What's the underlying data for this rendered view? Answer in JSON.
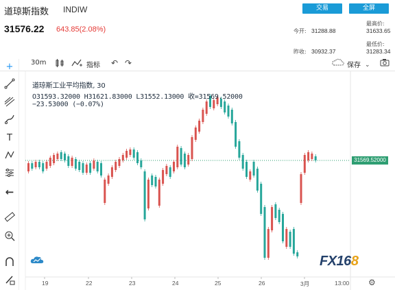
{
  "header": {
    "title": "道琼斯指数",
    "code": "INDIW",
    "trade_label": "交易",
    "fullscreen_label": "全屏",
    "price": "31576.22",
    "change": "643.85(2.08%)"
  },
  "stats": {
    "open_label": "今开:",
    "open": "31288.88",
    "prev_label": "昨收:",
    "prev": "30932.37",
    "high_label": "最高价:",
    "high": "31633.65",
    "low_label": "最低价:",
    "low": "31283.34"
  },
  "toolbar": {
    "interval": "30m",
    "indicator_label": "指标",
    "save_label": "保存"
  },
  "legend": {
    "title": "道琼斯工业平均指数, 30",
    "ohlc": "O31593.32000  H31621.83000  L31552.13000  收=31569.52000",
    "delta": "−23.53000 (−0.07%)"
  },
  "last_price_tag": "31569.52000",
  "x_labels": [
    "19",
    "22",
    "23",
    "24",
    "25",
    "26",
    "3月",
    "13:00"
  ],
  "logo": {
    "prefix": "FX16",
    "suffix": "8"
  },
  "chart_data": {
    "type": "candlestick",
    "x_ticks": [
      "19",
      "22",
      "23",
      "24",
      "25",
      "26",
      "3月",
      "13:00"
    ],
    "last_value": 31569.52,
    "up_color": "#26a69a",
    "down_color": "#d9534f",
    "candles": [
      [
        0,
        238,
        250,
        -1
      ],
      [
        1,
        238,
        246,
        1
      ],
      [
        2,
        236,
        244,
        -1
      ],
      [
        3,
        236,
        244,
        1
      ],
      [
        4,
        238,
        250,
        1
      ],
      [
        5,
        236,
        246,
        -1
      ],
      [
        6,
        230,
        242,
        -1
      ],
      [
        7,
        226,
        238,
        -1
      ],
      [
        8,
        224,
        232,
        -1
      ],
      [
        9,
        222,
        232,
        1
      ],
      [
        10,
        224,
        234,
        1
      ],
      [
        11,
        228,
        242,
        1
      ],
      [
        12,
        230,
        242,
        -1
      ],
      [
        13,
        232,
        246,
        1
      ],
      [
        14,
        236,
        248,
        1
      ],
      [
        15,
        238,
        252,
        1
      ],
      [
        16,
        240,
        252,
        -1
      ],
      [
        17,
        238,
        252,
        1
      ],
      [
        18,
        234,
        246,
        -1
      ],
      [
        19,
        236,
        250,
        1
      ],
      [
        20,
        238,
        256,
        1
      ],
      [
        21,
        262,
        296,
        -1
      ],
      [
        22,
        256,
        268,
        -1
      ],
      [
        23,
        244,
        258,
        -1
      ],
      [
        24,
        236,
        248,
        -1
      ],
      [
        25,
        232,
        242,
        -1
      ],
      [
        26,
        226,
        234,
        -1
      ],
      [
        27,
        220,
        230,
        -1
      ],
      [
        28,
        218,
        226,
        -1
      ],
      [
        29,
        218,
        230,
        1
      ],
      [
        30,
        222,
        238,
        1
      ],
      [
        31,
        234,
        244,
        1
      ],
      [
        32,
        250,
        320,
        1
      ],
      [
        33,
        262,
        304,
        -1
      ],
      [
        34,
        256,
        270,
        1
      ],
      [
        35,
        258,
        272,
        1
      ],
      [
        36,
        262,
        300,
        -1
      ],
      [
        37,
        248,
        268,
        -1
      ],
      [
        38,
        242,
        254,
        -1
      ],
      [
        39,
        244,
        258,
        1
      ],
      [
        40,
        236,
        250,
        -1
      ],
      [
        41,
        214,
        244,
        -1
      ],
      [
        42,
        216,
        240,
        1
      ],
      [
        43,
        224,
        244,
        1
      ],
      [
        44,
        226,
        240,
        -1
      ],
      [
        45,
        200,
        232,
        -1
      ],
      [
        46,
        186,
        204,
        -1
      ],
      [
        47,
        176,
        192,
        -1
      ],
      [
        48,
        160,
        178,
        -1
      ],
      [
        49,
        148,
        166,
        -1
      ],
      [
        50,
        140,
        156,
        1
      ],
      [
        51,
        146,
        158,
        -1
      ],
      [
        52,
        142,
        152,
        -1
      ],
      [
        53,
        144,
        156,
        1
      ],
      [
        54,
        148,
        164,
        1
      ],
      [
        55,
        154,
        170,
        1
      ],
      [
        56,
        160,
        180,
        1
      ],
      [
        57,
        178,
        214,
        1
      ],
      [
        58,
        206,
        230,
        1
      ],
      [
        59,
        226,
        246,
        1
      ],
      [
        60,
        236,
        258,
        1
      ],
      [
        61,
        250,
        262,
        -1
      ],
      [
        62,
        236,
        256,
        1
      ],
      [
        63,
        246,
        278,
        1
      ],
      [
        64,
        268,
        312,
        1
      ],
      [
        65,
        302,
        376,
        1
      ],
      [
        66,
        334,
        376,
        -1
      ],
      [
        67,
        302,
        336,
        -1
      ],
      [
        68,
        298,
        318,
        1
      ],
      [
        69,
        306,
        324,
        1
      ],
      [
        70,
        312,
        352,
        1
      ],
      [
        71,
        334,
        360,
        -1
      ],
      [
        72,
        338,
        360,
        1
      ],
      [
        73,
        334,
        370,
        1
      ],
      [
        74,
        368,
        374,
        1
      ],
      [
        75,
        254,
        296,
        -1
      ],
      [
        76,
        226,
        252,
        -1
      ],
      [
        77,
        222,
        234,
        -1
      ],
      [
        78,
        224,
        232,
        -1
      ],
      [
        79,
        228,
        234,
        1
      ]
    ]
  }
}
